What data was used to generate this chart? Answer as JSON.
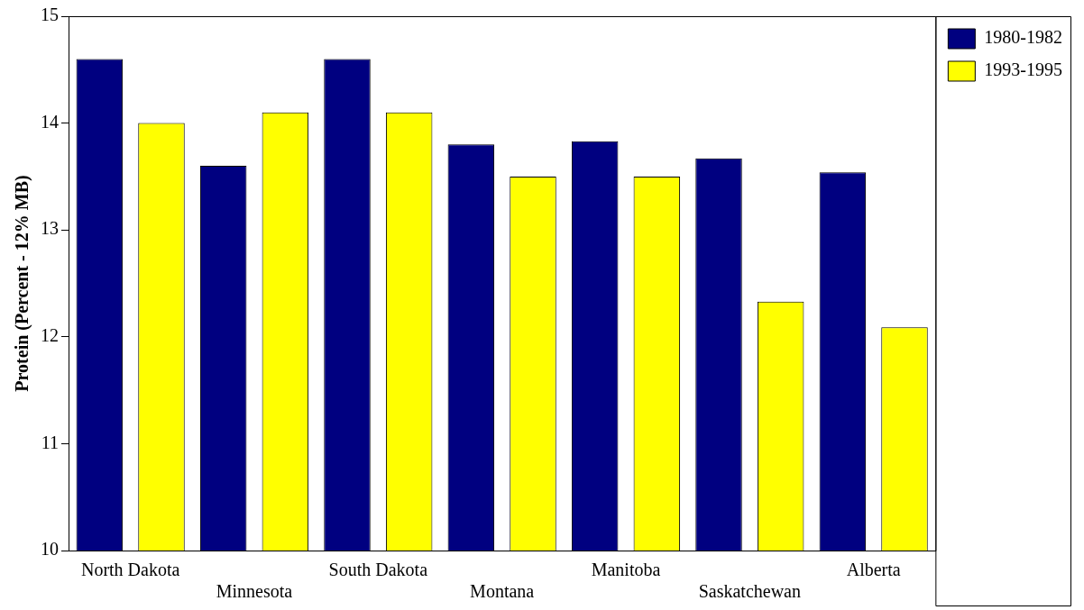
{
  "chart_data": {
    "type": "bar",
    "ylabel": "Protein (Percent - 12% MB)",
    "categories": [
      "North Dakota",
      "Minnesota",
      "South Dakota",
      "Montana",
      "Manitoba",
      "Saskatchewan",
      "Alberta"
    ],
    "series": [
      {
        "name": "1980-1982",
        "color": "#000080",
        "values": [
          14.6,
          13.6,
          14.6,
          13.8,
          13.83,
          13.67,
          13.54
        ]
      },
      {
        "name": "1993-1995",
        "color": "#ffff00",
        "values": [
          14.0,
          14.1,
          14.1,
          13.5,
          13.5,
          12.33,
          12.09
        ]
      }
    ],
    "ylim": [
      10,
      15
    ],
    "yticks": [
      10,
      11,
      12,
      13,
      14,
      15
    ],
    "grid": false,
    "legend": "top right"
  }
}
